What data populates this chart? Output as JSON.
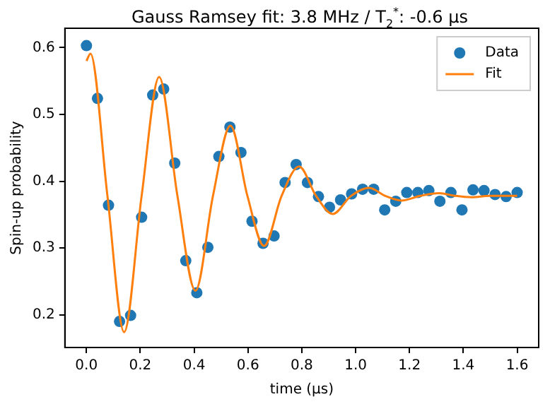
{
  "chart_data": {
    "type": "scatter",
    "title": "Gauss Ramsey fit: 3.8 MHz / T$_{2}$$^{*}$: -0.6 μs",
    "xlabel": "time (μs)",
    "ylabel": "Spin-up probability",
    "xlim": [
      -0.08,
      1.68
    ],
    "xticks": [
      {
        "value": 0,
        "label": "0.0"
      },
      0.2,
      0.4,
      0.6,
      0.8,
      {
        "value": 1,
        "label": "1.0"
      },
      1.2,
      1.4,
      1.6
    ],
    "ylim": [
      0.151,
      0.629
    ],
    "yticks": [
      0.2,
      0.3,
      0.4,
      0.5,
      0.6
    ],
    "grid": false,
    "legend": "top right",
    "series": [
      {
        "name": "Data",
        "marker": "circle",
        "color": "#1f77b4",
        "x": [
          0,
          0.041,
          0.082,
          0.123,
          0.164,
          0.205,
          0.246,
          0.287,
          0.328,
          0.369,
          0.41,
          0.451,
          0.492,
          0.533,
          0.574,
          0.615,
          0.656,
          0.697,
          0.738,
          0.779,
          0.821,
          0.862,
          0.903,
          0.944,
          0.985,
          1.026,
          1.067,
          1.108,
          1.149,
          1.19,
          1.231,
          1.272,
          1.313,
          1.354,
          1.395,
          1.436,
          1.477,
          1.518,
          1.559,
          1.6
        ],
        "values": [
          0.603,
          0.524,
          0.364,
          0.19,
          0.199,
          0.346,
          0.529,
          0.538,
          0.427,
          0.281,
          0.233,
          0.301,
          0.437,
          0.481,
          0.443,
          0.34,
          0.307,
          0.318,
          0.398,
          0.425,
          0.398,
          0.377,
          0.361,
          0.372,
          0.381,
          0.388,
          0.388,
          0.357,
          0.37,
          0.383,
          0.383,
          0.386,
          0.37,
          0.383,
          0.357,
          0.387,
          0.386,
          0.38,
          0.377,
          0.383
        ]
      },
      {
        "name": "Fit",
        "type": "line",
        "marker": "none",
        "line_style": "solid",
        "color": "#ff7f0e",
        "x": [
          0,
          0.015,
          0.078,
          0.14,
          0.205,
          0.27,
          0.338,
          0.405,
          0.47,
          0.535,
          0.598,
          0.66,
          0.725,
          0.79,
          0.853,
          0.915,
          0.983,
          1.05,
          1.11,
          1.17,
          1.24,
          1.31,
          1.37,
          1.43,
          1.5,
          1.6
        ],
        "values": [
          0.58,
          0.591,
          0.378,
          0.174,
          0.378,
          0.556,
          0.378,
          0.236,
          0.378,
          0.483,
          0.378,
          0.303,
          0.378,
          0.422,
          0.378,
          0.351,
          0.378,
          0.39,
          0.378,
          0.371,
          0.378,
          0.382,
          0.378,
          0.376,
          0.378,
          0.378
        ]
      }
    ]
  }
}
